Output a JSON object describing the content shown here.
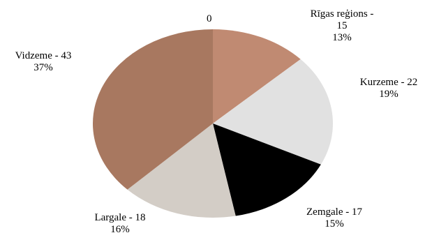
{
  "chart_data": {
    "type": "pie",
    "title": "",
    "top_label": "0",
    "slices": [
      {
        "name": "Rīgas reģions",
        "value": 15,
        "percent": "13%",
        "label_lines": [
          "Rīgas reģions -",
          "15",
          "13%"
        ],
        "color": "#c08a72"
      },
      {
        "name": "Kurzeme",
        "value": 22,
        "percent": "19%",
        "label_lines": [
          "Kurzeme - 22",
          "19%"
        ],
        "color": "#e1e1e1"
      },
      {
        "name": "Zemgale",
        "value": 17,
        "percent": "15%",
        "label_lines": [
          "Zemgale - 17",
          "15%"
        ],
        "color": "#000000"
      },
      {
        "name": "Largale",
        "value": 18,
        "percent": "16%",
        "label_lines": [
          "Largale - 18",
          "16%"
        ],
        "color": "#d3cdc6"
      },
      {
        "name": "Vidzeme",
        "value": 43,
        "percent": "37%",
        "label_lines": [
          "Vidzeme - 43",
          "37%"
        ],
        "color": "#a87860"
      }
    ]
  }
}
